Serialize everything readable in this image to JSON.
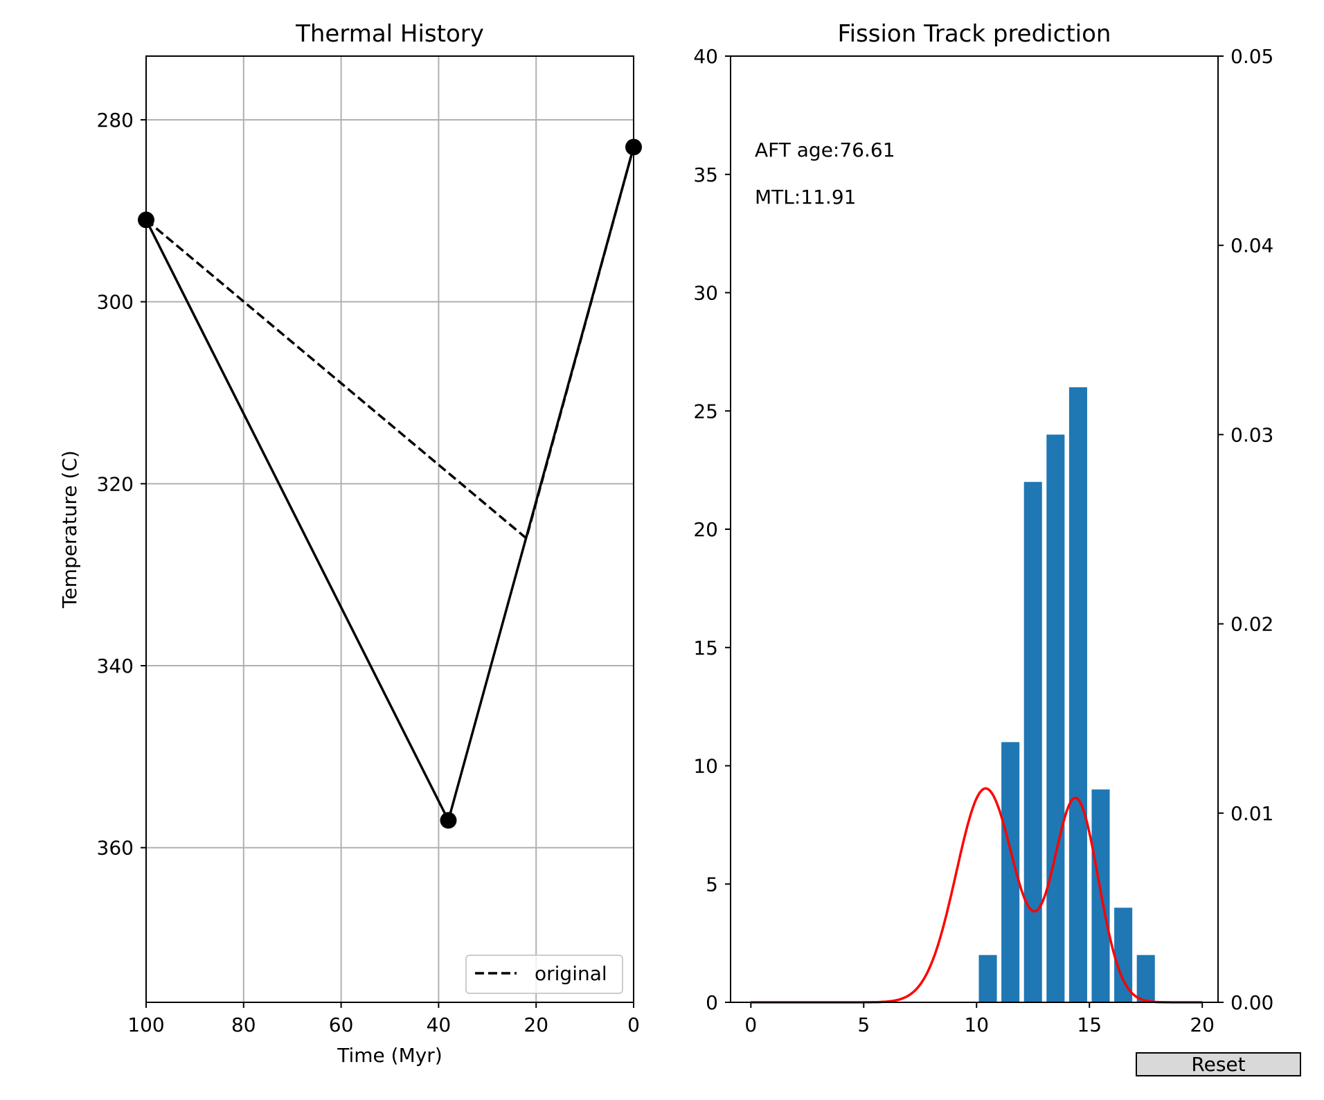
{
  "reset_label": "Reset",
  "chart_data": [
    {
      "type": "line",
      "title": "Thermal History",
      "xlabel": "Time (Myr)",
      "ylabel": "Temperature (C)",
      "xlim": [
        100,
        0
      ],
      "ylim": [
        377,
        273
      ],
      "x_inverted": true,
      "y_inverted": true,
      "xticks": [
        100,
        80,
        60,
        40,
        20,
        0
      ],
      "yticks": [
        280,
        300,
        320,
        340,
        360
      ],
      "grid": true,
      "legend_position": "lower-right",
      "series": [
        {
          "name": "",
          "style": "solid",
          "color": "#000000",
          "markers": true,
          "points": [
            [
              100,
              291
            ],
            [
              38,
              357
            ],
            [
              0,
              283
            ]
          ]
        },
        {
          "name": "original",
          "style": "dashed",
          "color": "#000000",
          "markers": false,
          "points": [
            [
              100,
              291
            ],
            [
              22,
              326
            ],
            [
              0,
              283
            ]
          ]
        }
      ]
    },
    {
      "type": "bar",
      "title": "Fission Track prediction",
      "xlim": [
        -0.9,
        20.7
      ],
      "ylim": [
        0,
        40
      ],
      "y2lim": [
        0,
        0.05
      ],
      "xticks": [
        0,
        5,
        10,
        15,
        20
      ],
      "yticks": [
        0,
        5,
        10,
        15,
        20,
        25,
        30,
        35,
        40
      ],
      "y2ticks": [
        "0.00",
        "0.01",
        "0.02",
        "0.03",
        "0.04",
        "0.05"
      ],
      "grid": false,
      "bar_color": "#1f77b4",
      "bar_width": 0.8,
      "bars": {
        "x": [
          10.5,
          11.5,
          12.5,
          13.5,
          14.5,
          15.5,
          16.5,
          17.5
        ],
        "values": [
          2,
          11,
          22,
          24,
          26,
          9,
          4,
          2
        ]
      },
      "density_curve": {
        "color": "#ff0000",
        "axis": "right",
        "components": [
          {
            "weight": 0.0113,
            "mean": 10.4,
            "sd": 1.3
          },
          {
            "weight": 0.0107,
            "mean": 14.4,
            "sd": 1.0
          }
        ],
        "x_range": [
          0,
          20
        ]
      },
      "annotations": [
        "AFT age:76.61",
        "MTL:11.91"
      ]
    }
  ]
}
